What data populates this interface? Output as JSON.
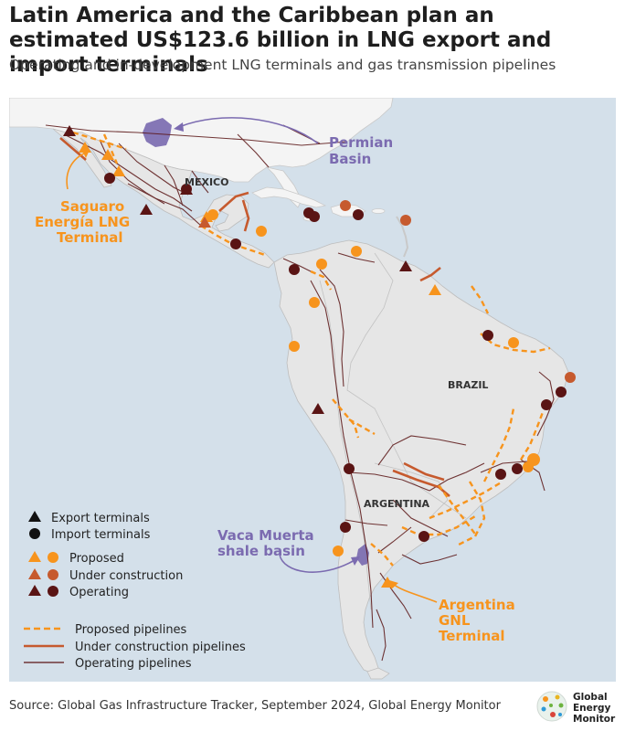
{
  "title": "Latin America and the Caribbean plan an estimated US$123.6 billion in LNG export and import terminals",
  "subtitle": "Operating and in-development LNG terminals and gas transmission pipelines",
  "map_labels": {
    "mexico": "MEXICO",
    "brazil": "BRAZIL",
    "argentina": "ARGENTINA"
  },
  "callouts": {
    "permian": [
      "Permian",
      "Basin"
    ],
    "saguaro": [
      "Saguaro",
      "Energía LNG",
      "Terminal"
    ],
    "vaca_muerta": [
      "Vaca Muerta",
      "shale basin"
    ],
    "argentina_gnl": [
      "Argentina",
      "GNL",
      "Terminal"
    ]
  },
  "legend": {
    "export": "Export terminals",
    "import": "Import terminals",
    "proposed": "Proposed",
    "under_construction": "Under construction",
    "operating": "Operating",
    "proposed_pipelines": "Proposed pipelines",
    "under_construction_pipelines": "Under construction pipelines",
    "operating_pipelines": "Operating pipelines"
  },
  "colors": {
    "proposed": "#f7941d",
    "under_construction": "#c65a2e",
    "operating": "#5a1414",
    "basin": "#7b6bb0",
    "water": "#d4e0ea",
    "land_focus": "#e6e6e6",
    "land_other": "#f4f4f4"
  },
  "source": "Source: Global Gas Infrastructure Tracker, September 2024, Global Energy Monitor",
  "logo": [
    "Global",
    "Energy",
    "Monitor"
  ]
}
